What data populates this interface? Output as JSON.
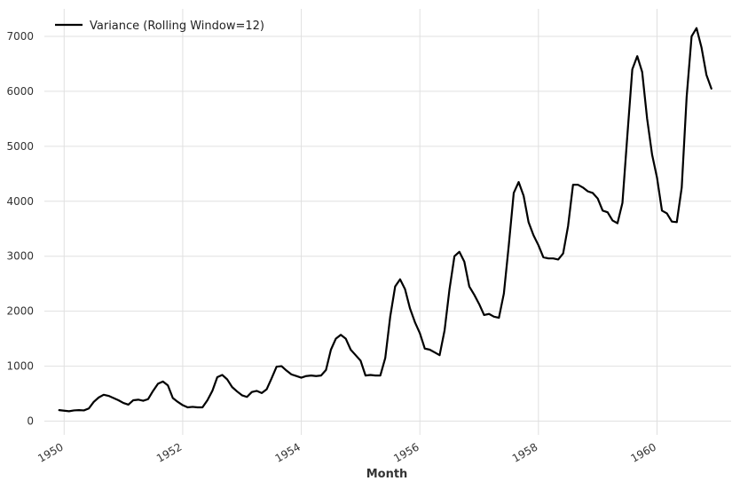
{
  "chart_data": {
    "type": "line",
    "xlabel": "Month",
    "ylabel": "",
    "xlim": [
      "1949-09",
      "1961-04"
    ],
    "ylim": [
      -250,
      7500
    ],
    "x_ticks": [
      "1950",
      "1952",
      "1954",
      "1956",
      "1958",
      "1960"
    ],
    "y_ticks": [
      0,
      1000,
      2000,
      3000,
      4000,
      5000,
      6000,
      7000
    ],
    "grid": true,
    "legend_position": "top-left",
    "series": [
      {
        "name": "Variance (Rolling Window=12)",
        "color": "#000000",
        "x": [
          "1949-12",
          "1950-01",
          "1950-02",
          "1950-03",
          "1950-04",
          "1950-05",
          "1950-06",
          "1950-07",
          "1950-08",
          "1950-09",
          "1950-10",
          "1950-11",
          "1950-12",
          "1951-01",
          "1951-02",
          "1951-03",
          "1951-04",
          "1951-05",
          "1951-06",
          "1951-07",
          "1951-08",
          "1951-09",
          "1951-10",
          "1951-11",
          "1951-12",
          "1952-01",
          "1952-02",
          "1952-03",
          "1952-04",
          "1952-05",
          "1952-06",
          "1952-07",
          "1952-08",
          "1952-09",
          "1952-10",
          "1952-11",
          "1952-12",
          "1953-01",
          "1953-02",
          "1953-03",
          "1953-04",
          "1953-05",
          "1953-06",
          "1953-07",
          "1953-08",
          "1953-09",
          "1953-10",
          "1953-11",
          "1953-12",
          "1954-01",
          "1954-02",
          "1954-03",
          "1954-04",
          "1954-05",
          "1954-06",
          "1954-07",
          "1954-08",
          "1954-09",
          "1954-10",
          "1954-11",
          "1954-12",
          "1955-01",
          "1955-02",
          "1955-03",
          "1955-04",
          "1955-05",
          "1955-06",
          "1955-07",
          "1955-08",
          "1955-09",
          "1955-10",
          "1955-11",
          "1955-12",
          "1956-01",
          "1956-02",
          "1956-03",
          "1956-04",
          "1956-05",
          "1956-06",
          "1956-07",
          "1956-08",
          "1956-09",
          "1956-10",
          "1956-11",
          "1956-12",
          "1957-01",
          "1957-02",
          "1957-03",
          "1957-04",
          "1957-05",
          "1957-06",
          "1957-07",
          "1957-08",
          "1957-09",
          "1957-10",
          "1957-11",
          "1957-12",
          "1958-01",
          "1958-02",
          "1958-03",
          "1958-04",
          "1958-05",
          "1958-06",
          "1958-07",
          "1958-08",
          "1958-09",
          "1958-10",
          "1958-11",
          "1958-12",
          "1959-01",
          "1959-02",
          "1959-03",
          "1959-04",
          "1959-05",
          "1959-06",
          "1959-07",
          "1959-08",
          "1959-09",
          "1959-10",
          "1959-11",
          "1959-12",
          "1960-01",
          "1960-02",
          "1960-03",
          "1960-04",
          "1960-05",
          "1960-06",
          "1960-07",
          "1960-08",
          "1960-09",
          "1960-10",
          "1960-11",
          "1960-12"
        ],
        "values": [
          200,
          190,
          180,
          195,
          200,
          195,
          230,
          350,
          430,
          480,
          460,
          420,
          380,
          330,
          300,
          380,
          390,
          370,
          400,
          550,
          680,
          720,
          650,
          420,
          350,
          290,
          250,
          260,
          250,
          250,
          380,
          550,
          800,
          840,
          760,
          620,
          540,
          470,
          440,
          530,
          550,
          510,
          580,
          780,
          990,
          1000,
          920,
          850,
          820,
          790,
          820,
          830,
          820,
          830,
          930,
          1300,
          1500,
          1570,
          1500,
          1300,
          1200,
          1100,
          830,
          840,
          830,
          830,
          1150,
          1900,
          2450,
          2580,
          2400,
          2050,
          1800,
          1600,
          1320,
          1300,
          1250,
          1200,
          1650,
          2400,
          3000,
          3080,
          2900,
          2450,
          2300,
          2130,
          1930,
          1950,
          1900,
          1880,
          2320,
          3200,
          4150,
          4350,
          4100,
          3620,
          3380,
          3200,
          2980,
          2960,
          2960,
          2940,
          3050,
          3550,
          4300,
          4300,
          4250,
          4180,
          4150,
          4050,
          3830,
          3800,
          3650,
          3600,
          3970,
          5200,
          6400,
          6640,
          6350,
          5500,
          4850,
          4430,
          3830,
          3780,
          3630,
          3620,
          4250,
          5900,
          7000,
          7150,
          6800,
          6300,
          6050
        ]
      }
    ]
  }
}
